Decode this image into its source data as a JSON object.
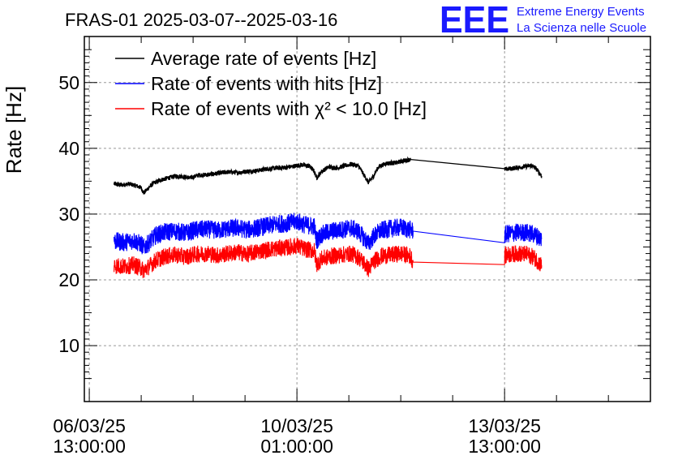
{
  "logo": {
    "mark": "EEE",
    "line1": "Extreme Energy Events",
    "line2": "La Scienza nelle Scuole",
    "color": "#1a1aff"
  },
  "chart_data": {
    "type": "line",
    "title": "FRAS-01 2025-03-07--2025-03-16",
    "ylabel": "Rate [Hz]",
    "xlabel": "",
    "ylim": [
      1.5,
      57
    ],
    "xlim_hours": [
      -2,
      227
    ],
    "grid": true,
    "legend_position": "top-left",
    "yticks": [
      10,
      20,
      30,
      40,
      50
    ],
    "xticks": [
      {
        "hours": 0,
        "date": "06/03/25",
        "time": "13:00:00"
      },
      {
        "hours": 84,
        "date": "10/03/25",
        "time": "01:00:00"
      },
      {
        "hours": 168,
        "date": "13/03/25",
        "time": "13:00:00"
      }
    ],
    "x_unit": "hours since 06/03/25 13:00:00",
    "series": [
      {
        "name": "Average rate of events [Hz]",
        "color": "#000000",
        "noise": 0.35,
        "points": [
          [
            10,
            34.6
          ],
          [
            13,
            34.4
          ],
          [
            16,
            34.6
          ],
          [
            19,
            34.3
          ],
          [
            21,
            34.0
          ],
          [
            22,
            33.2
          ],
          [
            24,
            34.0
          ],
          [
            26,
            34.7
          ],
          [
            29,
            35.2
          ],
          [
            32,
            35.5
          ],
          [
            35,
            35.8
          ],
          [
            38,
            35.7
          ],
          [
            41,
            35.5
          ],
          [
            44,
            35.9
          ],
          [
            48,
            36.0
          ],
          [
            52,
            36.2
          ],
          [
            56,
            36.4
          ],
          [
            60,
            36.3
          ],
          [
            64,
            36.5
          ],
          [
            68,
            36.6
          ],
          [
            72,
            36.9
          ],
          [
            76,
            37.0
          ],
          [
            80,
            37.1
          ],
          [
            83,
            37.3
          ],
          [
            86,
            37.5
          ],
          [
            89,
            37.3
          ],
          [
            91,
            36.5
          ],
          [
            92,
            35.5
          ],
          [
            94,
            36.5
          ],
          [
            97,
            37.2
          ],
          [
            100,
            37.0
          ],
          [
            103,
            37.3
          ],
          [
            106,
            37.6
          ],
          [
            109,
            37.3
          ],
          [
            111,
            36.0
          ],
          [
            113,
            34.8
          ],
          [
            115,
            35.8
          ],
          [
            117,
            37.2
          ],
          [
            120,
            37.7
          ],
          [
            124,
            37.8
          ],
          [
            127,
            38.1
          ],
          [
            130,
            38.3
          ],
          [
            168,
            36.8
          ],
          [
            172,
            37.0
          ],
          [
            176,
            37.2
          ],
          [
            179,
            37.4
          ],
          [
            181,
            36.8
          ],
          [
            183,
            35.8
          ]
        ]
      },
      {
        "name": "Rate of events with hits [Hz]",
        "color": "#0000ff",
        "noise": 1.4,
        "points": [
          [
            10,
            25.9
          ],
          [
            14,
            25.7
          ],
          [
            18,
            26.0
          ],
          [
            21,
            25.4
          ],
          [
            22,
            24.9
          ],
          [
            24,
            25.6
          ],
          [
            27,
            26.8
          ],
          [
            31,
            27.3
          ],
          [
            35,
            27.4
          ],
          [
            39,
            27.1
          ],
          [
            43,
            27.6
          ],
          [
            48,
            27.7
          ],
          [
            52,
            27.5
          ],
          [
            56,
            27.8
          ],
          [
            60,
            27.9
          ],
          [
            64,
            27.6
          ],
          [
            68,
            27.9
          ],
          [
            72,
            28.2
          ],
          [
            76,
            28.5
          ],
          [
            80,
            28.6
          ],
          [
            84,
            28.9
          ],
          [
            87,
            28.4
          ],
          [
            91,
            28.1
          ],
          [
            92,
            26.0
          ],
          [
            94,
            26.9
          ],
          [
            98,
            27.4
          ],
          [
            102,
            27.6
          ],
          [
            106,
            27.9
          ],
          [
            109,
            27.3
          ],
          [
            111,
            26.4
          ],
          [
            113,
            25.5
          ],
          [
            115,
            26.6
          ],
          [
            118,
            27.5
          ],
          [
            122,
            27.8
          ],
          [
            126,
            28.0
          ],
          [
            130,
            27.6
          ],
          [
            131,
            27.4
          ],
          [
            168,
            26.8
          ],
          [
            169,
            27.0
          ],
          [
            173,
            27.2
          ],
          [
            177,
            27.2
          ],
          [
            180,
            26.9
          ],
          [
            183,
            26.2
          ]
        ]
      },
      {
        "name": "Rate of events with χ² < 10.0 [Hz]",
        "color": "#ff0000",
        "noise": 1.3,
        "points": [
          [
            10,
            22.2
          ],
          [
            14,
            22.0
          ],
          [
            18,
            22.3
          ],
          [
            21,
            21.8
          ],
          [
            22,
            21.4
          ],
          [
            24,
            22.0
          ],
          [
            27,
            23.0
          ],
          [
            31,
            23.6
          ],
          [
            35,
            23.8
          ],
          [
            39,
            23.5
          ],
          [
            43,
            23.9
          ],
          [
            48,
            24.0
          ],
          [
            52,
            23.7
          ],
          [
            56,
            24.0
          ],
          [
            60,
            24.2
          ],
          [
            64,
            23.9
          ],
          [
            68,
            24.3
          ],
          [
            72,
            24.6
          ],
          [
            76,
            24.8
          ],
          [
            80,
            24.9
          ],
          [
            84,
            25.2
          ],
          [
            87,
            24.7
          ],
          [
            91,
            24.4
          ],
          [
            92,
            22.4
          ],
          [
            94,
            23.2
          ],
          [
            98,
            23.6
          ],
          [
            102,
            23.8
          ],
          [
            106,
            24.0
          ],
          [
            109,
            23.4
          ],
          [
            111,
            22.6
          ],
          [
            113,
            21.6
          ],
          [
            115,
            22.8
          ],
          [
            118,
            23.6
          ],
          [
            122,
            23.8
          ],
          [
            126,
            24.0
          ],
          [
            130,
            23.6
          ],
          [
            131,
            22.7
          ],
          [
            168,
            23.6
          ],
          [
            169,
            23.8
          ],
          [
            173,
            24.0
          ],
          [
            177,
            23.9
          ],
          [
            180,
            23.4
          ],
          [
            183,
            22.2
          ]
        ]
      }
    ]
  }
}
